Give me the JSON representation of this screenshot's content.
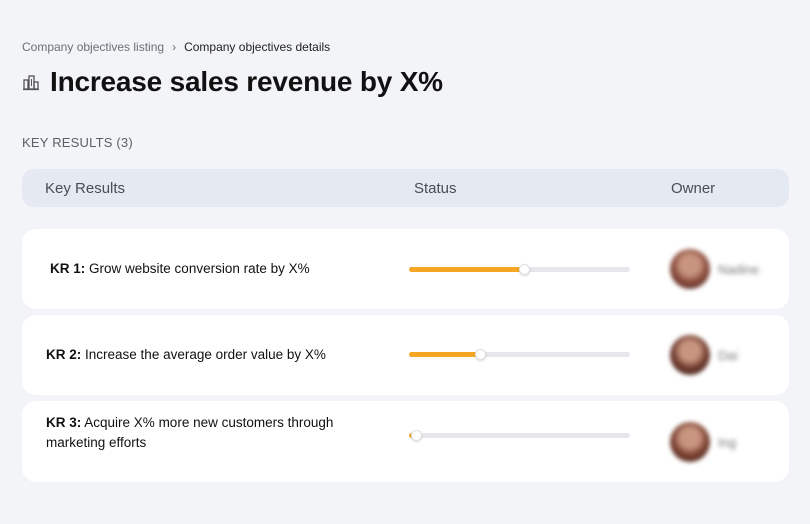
{
  "breadcrumb": {
    "parent": "Company objectives listing",
    "separator": "›",
    "current": "Company objectives details"
  },
  "page": {
    "icon": "building-icon",
    "title": "Increase sales revenue by X%"
  },
  "section": {
    "label": "KEY RESULTS (3)"
  },
  "table": {
    "headers": {
      "key_results": "Key Results",
      "status": "Status",
      "owner": "Owner"
    }
  },
  "key_results": [
    {
      "code": "KR 1:",
      "text": "Grow website conversion rate by X%",
      "progress": 0.52,
      "owner": "Nadine",
      "avatar_color": "#8a4b3c"
    },
    {
      "code": "KR 2:",
      "text": "Increase the average order value by X%",
      "progress": 0.32,
      "owner": "Dai",
      "avatar_color": "#6e3b2e"
    },
    {
      "code": "KR 3:",
      "text": "Acquire X% more new customers through marketing efforts",
      "progress": 0.03,
      "owner": "Ing",
      "avatar_color": "#7a4030"
    }
  ],
  "colors": {
    "accent": "#f5a623",
    "track": "#e6e7ea",
    "header_bg": "#e5e9f2",
    "page_bg": "#f3f4f7"
  }
}
